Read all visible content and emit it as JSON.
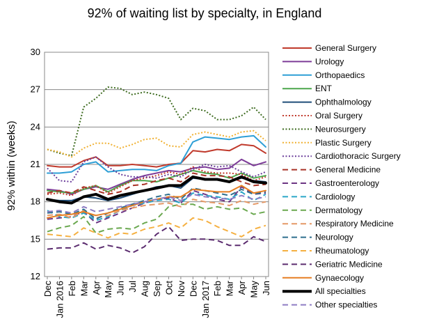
{
  "chart_data": {
    "type": "line",
    "title": "92% of waiting list by specialty, in England",
    "xlabel": "",
    "ylabel": "92% within (weeks)",
    "ylim": [
      12,
      30
    ],
    "yticks": [
      12,
      15,
      18,
      21,
      24,
      27,
      30
    ],
    "grid": "horizontal",
    "legend_position": "right",
    "x": [
      "Dec",
      "Jan 2016",
      "Feb",
      "Mar",
      "Apr",
      "May",
      "Jun",
      "Jul",
      "Aug",
      "Sep",
      "Oct",
      "Nov",
      "Dec",
      "Jan 2017",
      "Feb",
      "Mar",
      "Apr",
      "May",
      "Jun"
    ],
    "series": [
      {
        "name": "General Surgery",
        "color": "#c0392b",
        "style": "solid",
        "width": 2,
        "values": [
          20.9,
          20.8,
          20.8,
          21.3,
          21.6,
          20.9,
          20.9,
          21.0,
          20.9,
          20.8,
          21.0,
          21.1,
          22.1,
          22.0,
          22.2,
          22.1,
          22.6,
          22.5,
          21.9
        ]
      },
      {
        "name": "Urology",
        "color": "#7d3c98",
        "style": "solid",
        "width": 2,
        "values": [
          19.0,
          18.9,
          18.6,
          19.0,
          19.2,
          19.0,
          19.4,
          19.8,
          20.1,
          20.3,
          20.5,
          20.4,
          20.7,
          20.8,
          20.6,
          20.7,
          21.4,
          20.9,
          21.2
        ]
      },
      {
        "name": "Orthopaedics",
        "color": "#2e9fd6",
        "style": "solid",
        "width": 2,
        "values": [
          20.3,
          20.3,
          20.4,
          21.0,
          21.2,
          20.4,
          20.5,
          20.6,
          20.6,
          20.5,
          20.9,
          21.1,
          22.8,
          23.2,
          23.1,
          23.0,
          23.2,
          23.3,
          22.4
        ]
      },
      {
        "name": "ENT",
        "color": "#4ca64c",
        "style": "solid",
        "width": 2,
        "values": [
          18.9,
          18.8,
          18.7,
          19.0,
          19.3,
          18.8,
          19.3,
          19.7,
          19.7,
          19.6,
          19.9,
          20.2,
          20.5,
          20.3,
          20.2,
          19.9,
          20.3,
          19.9,
          20.1
        ]
      },
      {
        "name": "Ophthalmology",
        "color": "#1f4e79",
        "style": "solid",
        "width": 2,
        "values": [
          18.2,
          18.1,
          18.1,
          18.4,
          18.3,
          18.1,
          18.3,
          18.6,
          18.9,
          19.2,
          19.3,
          19.1,
          19.9,
          19.8,
          19.8,
          19.6,
          19.9,
          19.7,
          19.6
        ]
      },
      {
        "name": "Oral Surgery",
        "color": "#c0392b",
        "style": "dot",
        "width": 2,
        "values": [
          18.6,
          18.7,
          18.5,
          19.1,
          19.3,
          18.7,
          19.2,
          19.7,
          19.9,
          20.1,
          20.4,
          20.2,
          20.8,
          20.4,
          20.3,
          20.3,
          20.2,
          19.7,
          20.0
        ]
      },
      {
        "name": "Neurosurgery",
        "color": "#3d6b1f",
        "style": "dot",
        "width": 2,
        "values": [
          22.2,
          21.9,
          21.7,
          25.6,
          26.3,
          27.2,
          27.1,
          26.6,
          26.8,
          26.6,
          26.3,
          24.6,
          25.5,
          25.3,
          24.6,
          24.6,
          24.9,
          25.6,
          24.6
        ]
      },
      {
        "name": "Plastic Surgery",
        "color": "#f0b030",
        "style": "dot",
        "width": 2,
        "values": [
          22.2,
          22.0,
          21.6,
          22.3,
          22.7,
          22.7,
          22.3,
          22.6,
          23.0,
          23.1,
          22.5,
          22.4,
          23.4,
          23.6,
          23.4,
          23.2,
          23.6,
          23.7,
          22.9
        ]
      },
      {
        "name": "Cardiothoracic Surgery",
        "color": "#6a3d9a",
        "style": "dot",
        "width": 2,
        "values": [
          20.7,
          19.7,
          19.6,
          21.2,
          21.6,
          20.8,
          20.2,
          20.0,
          20.0,
          19.9,
          20.2,
          20.0,
          20.6,
          21.0,
          20.8,
          20.9,
          20.4,
          20.0,
          20.4
        ]
      },
      {
        "name": "General Medicine",
        "color": "#a93226",
        "style": "dash",
        "width": 2,
        "values": [
          18.7,
          18.9,
          18.7,
          19.2,
          18.9,
          18.6,
          18.8,
          19.3,
          19.4,
          19.7,
          19.9,
          19.6,
          20.3,
          20.1,
          20.1,
          20.0,
          19.6,
          19.3,
          19.4
        ]
      },
      {
        "name": "Gastroenterology",
        "color": "#6c3483",
        "style": "dash",
        "width": 2,
        "values": [
          16.6,
          16.7,
          16.8,
          17.2,
          16.3,
          16.7,
          17.1,
          17.5,
          17.9,
          18.2,
          18.3,
          17.9,
          18.9,
          18.6,
          18.2,
          18.0,
          19.2,
          18.6,
          18.7
        ]
      },
      {
        "name": "Cardiology",
        "color": "#2aa6c8",
        "style": "dash",
        "width": 2,
        "values": [
          17.3,
          16.8,
          16.7,
          17.1,
          16.5,
          16.8,
          17.3,
          17.7,
          17.9,
          18.1,
          18.2,
          17.9,
          18.7,
          18.5,
          18.4,
          18.2,
          18.8,
          18.1,
          18.6
        ]
      },
      {
        "name": "Dermatology",
        "color": "#6aa84f",
        "style": "dash",
        "width": 2,
        "values": [
          15.6,
          15.9,
          16.1,
          16.8,
          15.5,
          15.8,
          15.9,
          15.8,
          16.3,
          16.6,
          17.6,
          17.8,
          17.8,
          17.4,
          17.6,
          17.4,
          17.5,
          17.0,
          17.2
        ]
      },
      {
        "name": "Respiratory Medicine",
        "color": "#e59866",
        "style": "dash",
        "width": 2,
        "values": [
          16.9,
          17.0,
          16.7,
          17.3,
          16.7,
          16.9,
          17.3,
          17.5,
          17.7,
          17.8,
          17.9,
          17.6,
          18.2,
          18.0,
          17.9,
          17.7,
          18.1,
          17.8,
          18.0
        ]
      },
      {
        "name": "Neurology",
        "color": "#2e6f8e",
        "style": "dash",
        "width": 2,
        "values": [
          17.1,
          17.2,
          17.0,
          17.4,
          16.6,
          17.1,
          17.5,
          17.8,
          18.1,
          18.4,
          18.6,
          18.2,
          19.1,
          18.9,
          18.7,
          18.5,
          19.0,
          18.6,
          18.8
        ]
      },
      {
        "name": "Rheumatology",
        "color": "#f5b041",
        "style": "dash",
        "width": 2,
        "values": [
          15.4,
          15.3,
          15.2,
          15.9,
          15.5,
          15.1,
          15.5,
          15.4,
          15.8,
          16.0,
          16.3,
          15.9,
          16.7,
          16.5,
          16.0,
          15.6,
          15.2,
          15.8,
          16.1
        ]
      },
      {
        "name": "Geriatric Medicine",
        "color": "#5b2c6f",
        "style": "dash",
        "width": 2,
        "values": [
          14.2,
          14.3,
          14.3,
          14.7,
          14.2,
          14.5,
          14.3,
          13.9,
          14.4,
          15.4,
          16.0,
          14.9,
          15.0,
          15.0,
          14.9,
          14.5,
          14.5,
          15.2,
          14.8
        ]
      },
      {
        "name": "Gynaecology",
        "color": "#e67e22",
        "style": "solid",
        "width": 2,
        "values": [
          16.7,
          16.9,
          17.0,
          17.2,
          16.9,
          17.1,
          17.4,
          17.7,
          18.0,
          18.2,
          18.4,
          18.4,
          19.0,
          18.9,
          18.8,
          18.8,
          19.3,
          18.7,
          18.9
        ]
      },
      {
        "name": "All specialties",
        "color": "#000000",
        "style": "solid",
        "width": 4,
        "values": [
          18.2,
          18.0,
          17.9,
          18.4,
          18.6,
          18.2,
          18.5,
          18.7,
          18.9,
          19.1,
          19.3,
          19.3,
          20.0,
          19.8,
          19.8,
          19.6,
          20.0,
          19.6,
          19.5
        ]
      },
      {
        "name": "Other specialties",
        "color": "#8e7cc3",
        "style": "dash",
        "width": 2,
        "values": [
          17.2,
          17.3,
          17.1,
          17.6,
          17.2,
          17.4,
          17.6,
          17.8,
          18.0,
          18.2,
          18.4,
          18.1,
          18.6,
          18.4,
          18.3,
          18.2,
          18.5,
          18.2,
          18.4
        ]
      }
    ]
  }
}
